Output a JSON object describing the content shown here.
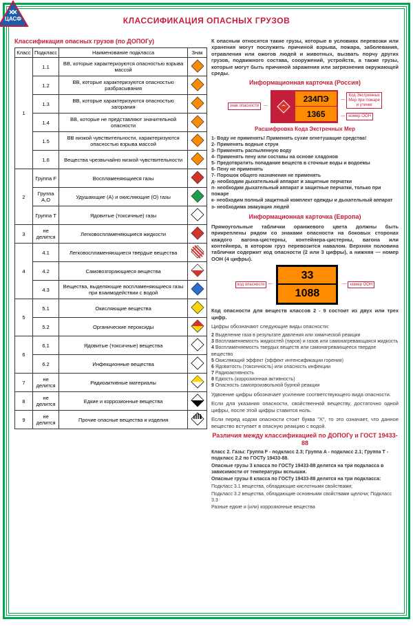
{
  "title": "КЛАССИФИКАЦИЯ ОПАСНЫХ ГРУЗОВ",
  "table_title": "Классификация опасных грузов (по ДОПОГу)",
  "headers": {
    "class": "Класс",
    "subclass": "Подкласс",
    "name": "Наименование подкласса",
    "sign": "Знак"
  },
  "rows": [
    {
      "class": "1",
      "rowspan": 6,
      "sub": "1.1",
      "name": "ВВ, которые характеризуются опасностью взрыва массой",
      "color": "#ff8c00",
      "stripe": false
    },
    {
      "sub": "1.2",
      "name": "ВВ, которые характеризуются опасностью разбрасывания",
      "color": "#ff8c00",
      "stripe": false
    },
    {
      "sub": "1.3",
      "name": "ВВ, которые характеризуются опасностью загорания",
      "color": "#ff8c00",
      "stripe": false
    },
    {
      "sub": "1.4",
      "name": "ВВ, которые не представляют значительной опасности",
      "color": "#ff8c00",
      "stripe": false
    },
    {
      "sub": "1.5",
      "name": "ВВ низкой чувствительности, характеризуются опасностью взрыва массой",
      "color": "#ff8c00",
      "stripe": false
    },
    {
      "sub": "1.6",
      "name": "Вещества чрезвычайно низкой чувствительности",
      "color": "#ff8c00",
      "stripe": false
    },
    {
      "class": "2",
      "rowspan": 3,
      "sub": "Группа F",
      "name": "Воспламеняющиеся газы",
      "color": "#d4342a",
      "stripe": false
    },
    {
      "sub": "Группа A,O",
      "name": "Удушающие (А) и окисляющие (О) газы",
      "color": "#1a9e4a",
      "stripe": false
    },
    {
      "sub": "Группа T",
      "name": "Ядовитые (токсичные) газы",
      "color": "#ffffff",
      "stripe": false,
      "border": "#000"
    },
    {
      "class": "3",
      "rowspan": 1,
      "sub": "не делится",
      "name": "Легковоспламеняющиеся жидкости",
      "color": "#d4342a",
      "stripe": false
    },
    {
      "class": "4",
      "rowspan": 3,
      "sub": "4.1",
      "name": "Легковоспламеняющиеся твердые вещества",
      "color": "#ffffff",
      "stripe": true,
      "stripecolor": "#d4342a"
    },
    {
      "sub": "4.2",
      "name": "Самовозгорающиеся вещества",
      "color": "#ffffff",
      "half": "#d4342a"
    },
    {
      "sub": "4.3",
      "name": "Вещества, выделяющие воспламеняющиеся газы при взаимодействии с водой",
      "color": "#2a6fd4",
      "stripe": false
    },
    {
      "class": "5",
      "rowspan": 2,
      "sub": "5.1",
      "name": "Окисляющие вещества",
      "color": "#ffd700",
      "stripe": false
    },
    {
      "sub": "5.2",
      "name": "Органические пероксиды",
      "color": "#ffd700",
      "half2": "#d4342a"
    },
    {
      "class": "6",
      "rowspan": 2,
      "sub": "6.1",
      "name": "Ядовитые (токсичные) вещества",
      "color": "#ffffff",
      "stripe": false,
      "border": "#000"
    },
    {
      "sub": "6.2",
      "name": "Инфекционные вещества",
      "color": "#ffffff",
      "stripe": false,
      "border": "#000"
    },
    {
      "class": "7",
      "rowspan": 1,
      "sub": "не делится",
      "name": "Радиоактивные материалы",
      "color": "#ffffff",
      "halftop": "#ffd700",
      "border": "#000"
    },
    {
      "class": "8",
      "rowspan": 1,
      "sub": "не делится",
      "name": "Едкие и коррозионные вещества",
      "color": "#ffffff",
      "halfbot": "#000",
      "border": "#000"
    },
    {
      "class": "9",
      "rowspan": 1,
      "sub": "не делится",
      "name": "Прочие опасные вещества и изделия",
      "color": "#ffffff",
      "stripetop": "#000",
      "border": "#000"
    }
  ],
  "intro": "К опасным относятся такие грузы, которые в условиях перевозки или хранения могут послужить причиной взрыва, пожара, заболевания, отравления или ожогов людей и животных, вызвать порчу других грузов, подвижного состава, сооружений, устройств, а также грузы, которые могут быть причиной заражения или загрязнения окружающей среды.",
  "card_ru_title": "Информационная карточка (Россия)",
  "card_ru": {
    "code1": "234ПЭ",
    "code2": "1365",
    "lbl_left": "знак опасности",
    "lbl_right_top": "Код Экстренных Мер при пожаре и утечке",
    "lbl_right_bot": "номер ООН"
  },
  "decode_title": "Расшифровка Кода Экстренных Мер",
  "decode": [
    "1- Воду не применять! Применять сухие огнетушащие средства!",
    "2- Применять водные струи",
    "3- Применять распыленную воду",
    "4- Применять пену или составы на основе хладонов",
    "5- Предотвратить попадание веществ в сточные воды и водоемы",
    "6- Пену не применять",
    "7- Порошок общего назначения не применять",
    "д- необходим дыхательный аппарат и защитные перчатки",
    "п- необходим дыхательный аппарат и защитные перчатки, только при пожаре",
    "к- необходим полный защитный комплект одежды и дыхательный аппарат",
    "э- необходима эвакуация людей"
  ],
  "card_eu_title": "Информационная карточка (Европа)",
  "eu_intro": "Прямоугольные таблички оранжевого цвета должны быть прикреплены рядом со знаками опасности на боковых сторонах каждого вагона-цистерны, контейнера-цистерны, вагона или контейнера, в котором груз перевозится навалом. Верхняя половина таблички содержит код опасности (2 или 3 цифры), а нижняя — номер ООН (4 цифры).",
  "card_eu": {
    "code1": "33",
    "code2": "1088",
    "lbl_left": "код опасности",
    "lbl_right": "номер ООН"
  },
  "eu_note": "Код опасности для веществ классов 2 - 9 состоит из двух или трех цифр.",
  "hazard_intro": "Цифры обозначают следующие виды опасности:",
  "hazards": [
    "2 Выделение газа в результате давления или химической реакции",
    "3 Воспламеняемость жидкостей (паров) и газов или самонагревающаяся жидкость",
    "4 Воспламеняемость твердых веществ или самонагревающееся твердое вещество",
    "5 Окисляющий эффект (эффект интенсификации горения)",
    "6 Ядовитость (токсичность) или опасность инфекции",
    "7 Радиоактивность",
    "8 Едкость (коррозионная активность)",
    "9 Опасность самопроизвольной бурной реакции"
  ],
  "hazard_notes": [
    "Удвоение цифры обозначает усиление соответствующего вида опасности.",
    "Если для указания опасности, свойственной веществу, достаточно одной цифры, после этой цифры ставится ноль.",
    "Если перед кодом опасности стоит буква \"X\", то это означает, что данное вещество вступает в опасную реакцию с водой."
  ],
  "diff_title": "Различия между классификацией по ДОПОГу и ГОСТ 19433-88",
  "diff": [
    "Класс 2. Газы: Группа F - подкласс 2.3; Группа A - подкласс 2.1; Группа T - подкласс 2.2 по ГОСТу 19433-88.",
    "Опасные грузы 3 класса по ГОСТу 19433-88 делятся на три подкласса в зависимости от температуры вспышки.",
    "Опасные грузы 8 класса по ГОСТу 19433-88 делятся на три подкласса:",
    "Подкласс 3.1 вещества, обладающие кислотными свойствами;",
    "Подкласс 3.2 вещества, обладающие основными свойствами щелочи; Подкласс 3.3",
    "Разные едкие и (или) коррозионные вещества"
  ]
}
